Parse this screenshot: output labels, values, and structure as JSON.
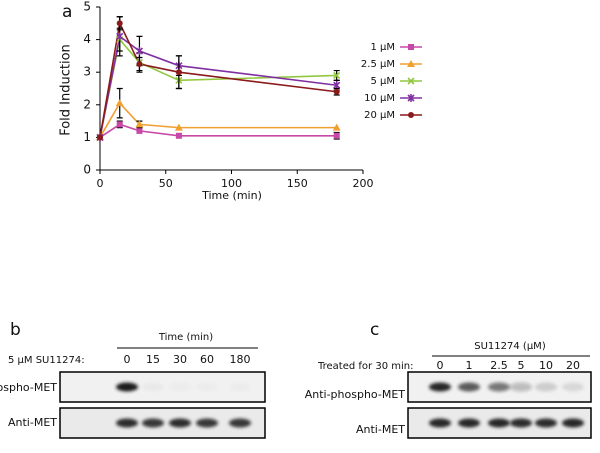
{
  "chart_data": {
    "type": "line",
    "panel_label": "a",
    "x_label": "Time (min)",
    "y_label": "Fold Induction",
    "x": [
      0,
      15,
      30,
      60,
      180
    ],
    "xlim": [
      0,
      200
    ],
    "xticks": [
      0,
      50,
      100,
      150,
      200
    ],
    "ylim": [
      0,
      5
    ],
    "yticks": [
      0,
      1,
      2,
      3,
      4,
      5
    ],
    "legend": "right",
    "series": [
      {
        "name": "1 μM",
        "color": "#c848a8",
        "marker": "square",
        "values": [
          1,
          1.4,
          1.2,
          1.05,
          1.05
        ],
        "errors": [
          null,
          0.1,
          null,
          null,
          0.1
        ]
      },
      {
        "name": "2.5 μM",
        "color": "#f0a030",
        "marker": "triangle",
        "values": [
          1,
          2.05,
          1.4,
          1.3,
          1.3
        ],
        "errors": [
          null,
          0.45,
          0.1,
          null,
          null
        ]
      },
      {
        "name": "5 μM",
        "color": "#92c840",
        "marker": "cross",
        "values": [
          1,
          4.0,
          3.3,
          2.75,
          2.9
        ],
        "errors": [
          null,
          0.35,
          0.3,
          0.25,
          0.15
        ]
      },
      {
        "name": "10 μM",
        "color": "#8030a0",
        "marker": "star",
        "values": [
          1,
          4.1,
          3.65,
          3.2,
          2.6
        ],
        "errors": [
          null,
          0.6,
          0.45,
          0.3,
          0.15
        ]
      },
      {
        "name": "20 μM",
        "color": "#8b1a1a",
        "marker": "circle",
        "values": [
          1,
          4.5,
          3.25,
          3.0,
          2.4
        ],
        "errors": [
          null,
          0.2,
          0.2,
          0.5,
          0.1
        ]
      }
    ]
  },
  "blots": [
    {
      "panel_label": "b",
      "header": "Time (min)",
      "treatment": "5 μM SU11274:",
      "lanes": [
        "0",
        "15",
        "30",
        "60",
        "180"
      ],
      "rows": [
        "Anti-phospho-MET",
        "Anti-MET"
      ]
    },
    {
      "panel_label": "c",
      "header": "SU11274 (μM)",
      "treatment": "Treated for 30 min:",
      "lanes": [
        "0",
        "1",
        "2.5",
        "5",
        "10",
        "20"
      ],
      "rows": [
        "Anti-phospho-MET",
        "Anti-MET"
      ]
    }
  ]
}
